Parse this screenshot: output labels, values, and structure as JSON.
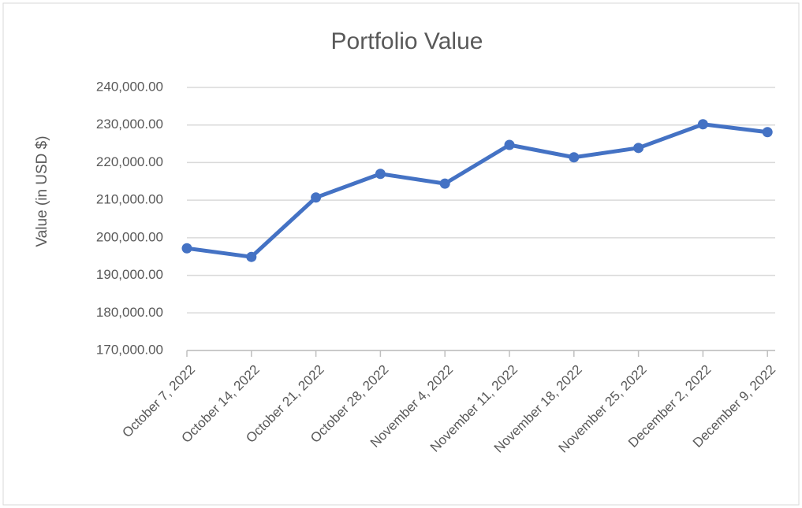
{
  "chart_data": {
    "type": "line",
    "title": "Portfolio Value",
    "y_label": "Value (in USD $)",
    "categories": [
      "October 7, 2022",
      "October 14, 2022",
      "October 21, 2022",
      "October 28, 2022",
      "November 4, 2022",
      "November 11, 2022",
      "November 18, 2022",
      "November 25, 2022",
      "December 2, 2022",
      "December 9, 2022"
    ],
    "series": [
      {
        "name": "Portfolio Value",
        "color": "#4472c4",
        "values": [
          197200,
          194900,
          210700,
          217000,
          214400,
          224700,
          221400,
          223900,
          230200,
          228100
        ]
      }
    ],
    "ylim": [
      170000,
      240000
    ],
    "yticks": [
      {
        "value": 170000,
        "label": "170,000.00"
      },
      {
        "value": 180000,
        "label": "180,000.00"
      },
      {
        "value": 190000,
        "label": "190,000.00"
      },
      {
        "value": 200000,
        "label": "200,000.00"
      },
      {
        "value": 210000,
        "label": "210,000.00"
      },
      {
        "value": 220000,
        "label": "220,000.00"
      },
      {
        "value": 230000,
        "label": "230,000.00"
      },
      {
        "value": 240000,
        "label": "240,000.00"
      }
    ],
    "grid": true
  }
}
